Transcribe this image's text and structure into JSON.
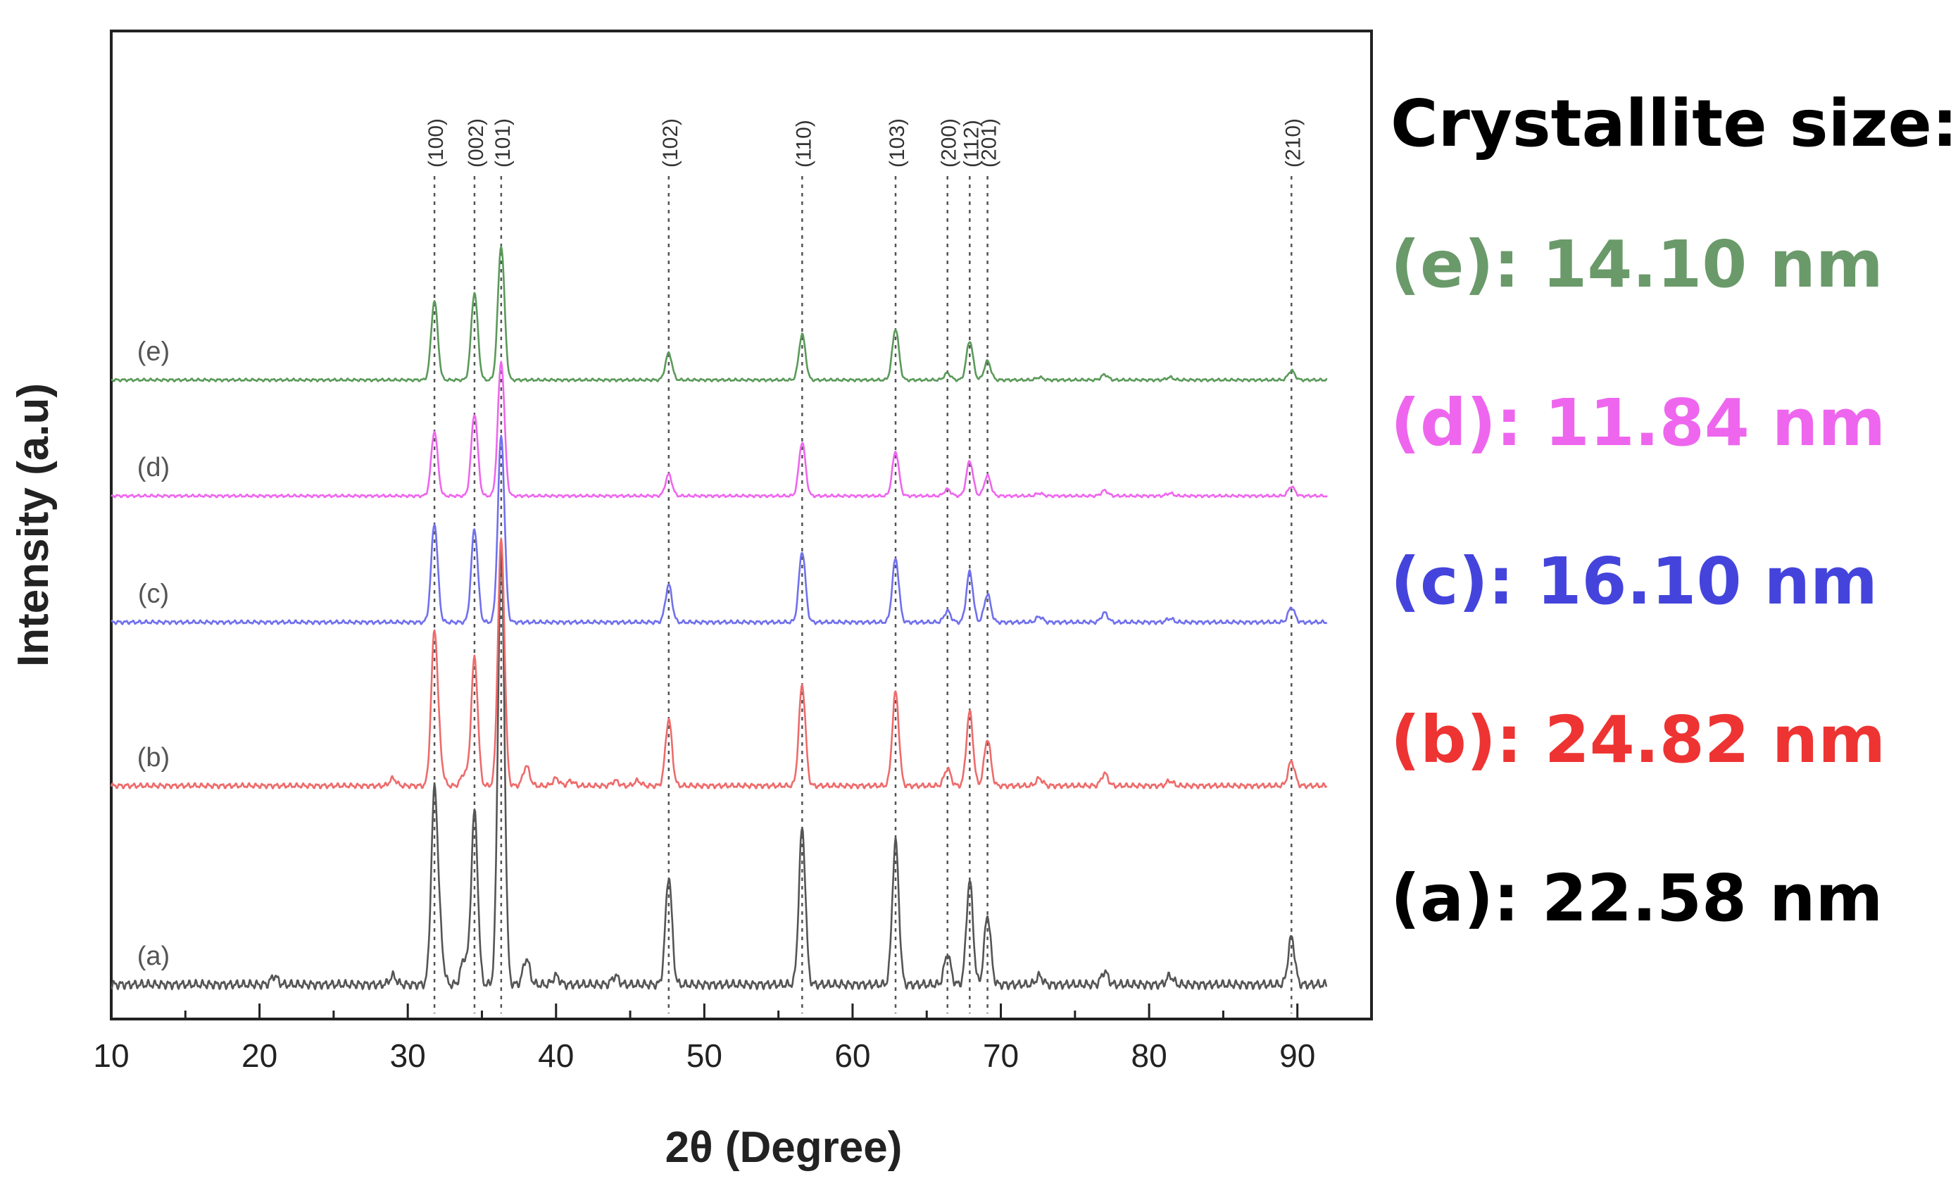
{
  "chart_data": {
    "type": "line",
    "title": "",
    "xlabel": "2θ (Degree)",
    "ylabel": "Intensity (a.u)",
    "xlim": [
      10,
      95
    ],
    "x_ticks": [
      10,
      20,
      30,
      40,
      50,
      60,
      70,
      80,
      90
    ],
    "x_tick_labels": [
      "10",
      "20",
      "30",
      "40",
      "50",
      "60",
      "70",
      "80",
      "90"
    ],
    "y_ticks_shown": false,
    "grid": false,
    "reference_lines": [
      {
        "label": "(100)",
        "x": 31.8
      },
      {
        "label": "(002)",
        "x": 34.5
      },
      {
        "label": "(101)",
        "x": 36.3
      },
      {
        "label": "(102)",
        "x": 47.6
      },
      {
        "label": "(110)",
        "x": 56.6
      },
      {
        "label": "(103)",
        "x": 62.9
      },
      {
        "label": "(200)",
        "x": 66.4
      },
      {
        "label": "(112)",
        "x": 67.9
      },
      {
        "label": "(201)",
        "x": 69.1
      },
      {
        "label": "(210)",
        "x": 89.6
      }
    ],
    "series": [
      {
        "name": "(a)",
        "color": "#555555",
        "offset": 0,
        "peaks": [
          [
            21.0,
            2
          ],
          [
            29.0,
            2
          ],
          [
            31.8,
            44
          ],
          [
            32.2,
            8
          ],
          [
            33.8,
            6
          ],
          [
            34.5,
            40
          ],
          [
            36.3,
            100
          ],
          [
            38.0,
            6
          ],
          [
            40.0,
            2
          ],
          [
            44.0,
            2
          ],
          [
            47.6,
            25
          ],
          [
            56.6,
            36
          ],
          [
            62.9,
            33
          ],
          [
            66.4,
            7
          ],
          [
            67.9,
            24
          ],
          [
            69.1,
            16
          ],
          [
            72.6,
            2
          ],
          [
            77.0,
            3
          ],
          [
            81.4,
            2
          ],
          [
            89.6,
            11
          ]
        ]
      },
      {
        "name": "(b)",
        "color": "#ee6b6b",
        "offset": 96,
        "peaks": [
          [
            29.0,
            3
          ],
          [
            31.8,
            62
          ],
          [
            32.2,
            7
          ],
          [
            33.8,
            5
          ],
          [
            34.5,
            52
          ],
          [
            36.3,
            100
          ],
          [
            38.0,
            8
          ],
          [
            40.0,
            3
          ],
          [
            41.0,
            2
          ],
          [
            44.0,
            2
          ],
          [
            45.5,
            2
          ],
          [
            47.6,
            27
          ],
          [
            56.6,
            41
          ],
          [
            62.9,
            38
          ],
          [
            66.4,
            7
          ],
          [
            67.9,
            30
          ],
          [
            69.1,
            19
          ],
          [
            72.6,
            3
          ],
          [
            77.0,
            5
          ],
          [
            81.4,
            2
          ],
          [
            89.6,
            10
          ]
        ]
      },
      {
        "name": "(c)",
        "color": "#7070ee",
        "offset": 175,
        "peaks": [
          [
            31.8,
            53
          ],
          [
            34.5,
            50
          ],
          [
            36.3,
            100
          ],
          [
            47.6,
            20
          ],
          [
            56.6,
            38
          ],
          [
            62.9,
            34
          ],
          [
            66.4,
            6
          ],
          [
            67.9,
            27
          ],
          [
            69.1,
            15
          ],
          [
            72.6,
            3
          ],
          [
            77.0,
            5
          ],
          [
            81.4,
            2
          ],
          [
            89.6,
            8
          ]
        ]
      },
      {
        "name": "(d)",
        "color": "#ee66ee",
        "offset": 236,
        "peaks": [
          [
            31.8,
            48
          ],
          [
            34.5,
            61
          ],
          [
            36.3,
            100
          ],
          [
            47.6,
            16
          ],
          [
            56.6,
            40
          ],
          [
            62.9,
            33
          ],
          [
            66.4,
            5
          ],
          [
            67.9,
            26
          ],
          [
            69.1,
            15
          ],
          [
            72.6,
            2
          ],
          [
            77.0,
            4
          ],
          [
            81.4,
            2
          ],
          [
            89.6,
            7
          ]
        ]
      },
      {
        "name": "(e)",
        "color": "#5a9a5a",
        "offset": 292,
        "peaks": [
          [
            31.8,
            59
          ],
          [
            34.5,
            65
          ],
          [
            36.3,
            100
          ],
          [
            47.6,
            20
          ],
          [
            56.6,
            34
          ],
          [
            62.9,
            38
          ],
          [
            66.4,
            5
          ],
          [
            67.9,
            29
          ],
          [
            69.1,
            14
          ],
          [
            72.6,
            2
          ],
          [
            77.0,
            4
          ],
          [
            81.4,
            2
          ],
          [
            89.6,
            7
          ]
        ]
      }
    ]
  },
  "size_panel": {
    "title": "Crystallite size:",
    "items": [
      {
        "text": "(e): 14.10 nm",
        "color": "#6a9a6a"
      },
      {
        "text": "(d): 11.84 nm",
        "color": "#ee66ee"
      },
      {
        "text": "(c): 16.10 nm",
        "color": "#4444dd"
      },
      {
        "text": "(b): 24.82 nm",
        "color": "#ee3333"
      },
      {
        "text": "(a): 22.58 nm",
        "color": "#000000"
      }
    ]
  }
}
